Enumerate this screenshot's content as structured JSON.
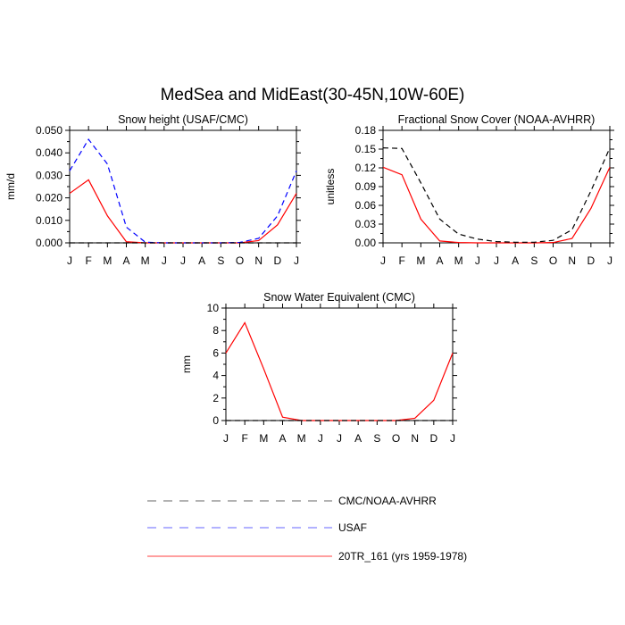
{
  "figure": {
    "title": "MedSea and MidEast(30-45N,10W-60E)"
  },
  "legend": {
    "entries": [
      {
        "label": "CMC/NOAA-AVHRR",
        "color": "#000000",
        "dash": "dashed"
      },
      {
        "label": "USAF",
        "color": "#0000ff",
        "dash": "dashed"
      },
      {
        "label": "20TR_161 (yrs 1959-1978)",
        "color": "#ff0000",
        "dash": "solid"
      }
    ]
  },
  "chart_data": [
    {
      "type": "line",
      "title": "Snow height (USAF/CMC)",
      "xlabel": "",
      "ylabel": "mm/d",
      "categories": [
        "J",
        "F",
        "M",
        "A",
        "M",
        "J",
        "J",
        "A",
        "S",
        "O",
        "N",
        "D",
        "J"
      ],
      "ylim": [
        0,
        0.05
      ],
      "yticks": [
        "0.000",
        "0.010",
        "0.020",
        "0.030",
        "0.040",
        "0.050"
      ],
      "ytick_values": [
        0,
        0.01,
        0.02,
        0.03,
        0.04,
        0.05
      ],
      "series": [
        {
          "name": "20TR_161 (yrs 1959-1978)",
          "color": "#ff0000",
          "dash": "solid",
          "values": [
            0.022,
            0.028,
            0.012,
            0.0005,
            0,
            0,
            0,
            0,
            0,
            0,
            0.001,
            0.008,
            0.022
          ]
        },
        {
          "name": "USAF",
          "color": "#0000ff",
          "dash": "dashed",
          "values": [
            0.032,
            0.046,
            0.035,
            0.007,
            0.0003,
            0,
            0,
            0,
            0,
            0.0002,
            0.002,
            0.012,
            0.032
          ]
        },
        {
          "name": "CMC/NOAA-AVHRR",
          "color": "#000000",
          "dash": "dashed",
          "values": [
            0,
            0,
            0,
            0,
            0,
            0,
            0,
            0,
            0,
            0,
            0,
            0,
            0
          ]
        }
      ]
    },
    {
      "type": "line",
      "title": "Fractional Snow Cover (NOAA-AVHRR)",
      "xlabel": "",
      "ylabel": "unitless",
      "categories": [
        "J",
        "F",
        "M",
        "A",
        "M",
        "J",
        "J",
        "A",
        "S",
        "O",
        "N",
        "D",
        "J"
      ],
      "ylim": [
        0,
        0.18
      ],
      "yticks": [
        "0.00",
        "0.03",
        "0.06",
        "0.09",
        "0.12",
        "0.15",
        "0.18"
      ],
      "ytick_values": [
        0,
        0.03,
        0.06,
        0.09,
        0.12,
        0.15,
        0.18
      ],
      "series": [
        {
          "name": "20TR_161 (yrs 1959-1978)",
          "color": "#ff0000",
          "dash": "solid",
          "values": [
            0.121,
            0.109,
            0.038,
            0.003,
            0.0005,
            0,
            0,
            0,
            0,
            0.0005,
            0.007,
            0.055,
            0.121
          ]
        },
        {
          "name": "CMC/NOAA-AVHRR",
          "color": "#000000",
          "dash": "dashed",
          "values": [
            0.152,
            0.151,
            0.096,
            0.038,
            0.014,
            0.006,
            0.002,
            0.001,
            0.001,
            0.004,
            0.021,
            0.083,
            0.152
          ]
        }
      ]
    },
    {
      "type": "line",
      "title": "Snow Water Equivalent (CMC)",
      "xlabel": "",
      "ylabel": "mm",
      "categories": [
        "J",
        "F",
        "M",
        "A",
        "M",
        "J",
        "J",
        "A",
        "S",
        "O",
        "N",
        "D",
        "J"
      ],
      "ylim": [
        0,
        10
      ],
      "yticks": [
        "0",
        "2",
        "4",
        "6",
        "8",
        "10"
      ],
      "ytick_values": [
        0,
        2,
        4,
        6,
        8,
        10
      ],
      "series": [
        {
          "name": "20TR_161 (yrs 1959-1978)",
          "color": "#ff0000",
          "dash": "solid",
          "values": [
            6.0,
            8.7,
            4.6,
            0.3,
            0,
            0,
            0,
            0,
            0,
            0,
            0.2,
            1.8,
            6.0
          ]
        },
        {
          "name": "CMC/NOAA-AVHRR",
          "color": "#000000",
          "dash": "dashed",
          "values": [
            0,
            0,
            0,
            0,
            0,
            0,
            0,
            0,
            0,
            0,
            0,
            0,
            0
          ]
        }
      ]
    }
  ]
}
